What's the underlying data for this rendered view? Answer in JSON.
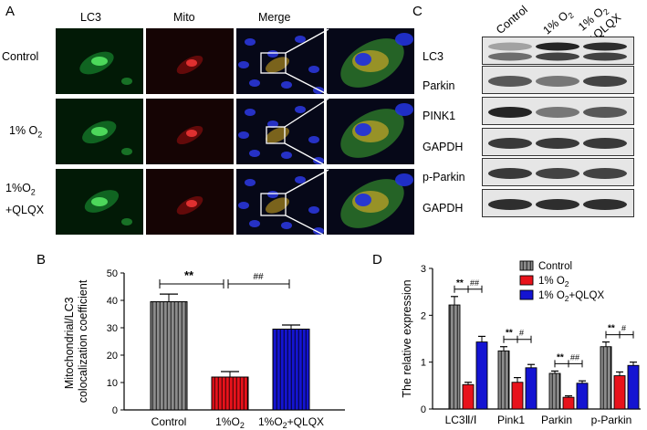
{
  "panelA": {
    "letter": "A",
    "columns": [
      "LC3",
      "Mito",
      "Merge"
    ],
    "rows": [
      {
        "label": "Control"
      },
      {
        "label": "1% O",
        "sub": "2"
      },
      {
        "label": "1%O",
        "sub": "2",
        "label2": "+QLQX"
      }
    ]
  },
  "panelC": {
    "letter": "C",
    "lanes": [
      "Control",
      "1% O2",
      "1% O2 +QLQX"
    ],
    "bands": [
      "LC3",
      "Parkin",
      "PINK1",
      "GAPDH",
      "p-Parkin",
      "GAPDH"
    ]
  },
  "colors": {
    "control": "#8c8c8c",
    "hypoxia": "#e8121b",
    "qlqx": "#1414d2"
  },
  "chart_data": [
    {
      "type": "bar",
      "panel": "B",
      "categories": [
        "Control",
        "1%O2",
        "1%O2+QLQX"
      ],
      "values": [
        39.5,
        12.0,
        29.5
      ],
      "errors": [
        2.8,
        2.0,
        1.5
      ],
      "ylabel": "Mitochondrial/LC3 colocalization coefficient",
      "ylim": [
        0,
        50
      ],
      "yticks": [
        0,
        10,
        20,
        30,
        40,
        50
      ],
      "annotations": [
        "**",
        "##"
      ]
    },
    {
      "type": "bar",
      "panel": "D",
      "categories": [
        "LC3II/I",
        "Pink1",
        "Parkin",
        "p-Parkin"
      ],
      "series": [
        {
          "name": "Control",
          "values": [
            2.22,
            1.24,
            0.76,
            1.33
          ],
          "errors": [
            0.18,
            0.09,
            0.05,
            0.1
          ]
        },
        {
          "name": "1% O2",
          "values": [
            0.52,
            0.57,
            0.25,
            0.71
          ],
          "errors": [
            0.05,
            0.1,
            0.03,
            0.08
          ]
        },
        {
          "name": "1% O2+QLQX",
          "values": [
            1.43,
            0.88,
            0.55,
            0.93
          ],
          "errors": [
            0.12,
            0.07,
            0.05,
            0.07
          ]
        }
      ],
      "ylabel": "The relative expression",
      "ylim": [
        0,
        3
      ],
      "yticks": [
        0,
        1,
        2,
        3
      ],
      "annotations": [
        [
          "**",
          "##"
        ],
        [
          "**",
          "#"
        ],
        [
          "**",
          "##"
        ],
        [
          "**",
          "#"
        ]
      ]
    }
  ]
}
